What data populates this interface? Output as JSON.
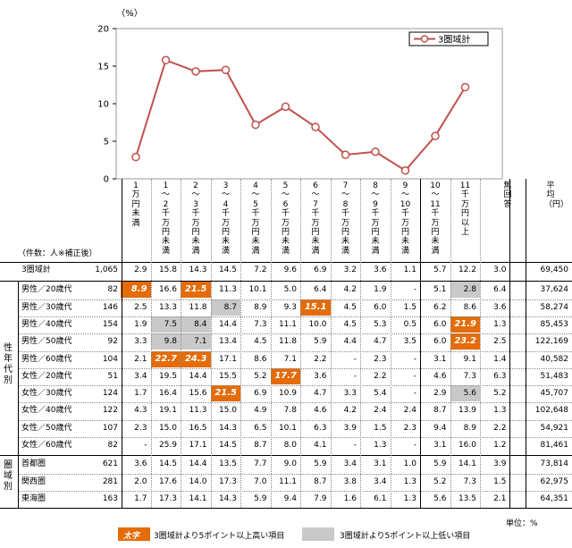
{
  "chart_data": {
    "type": "line",
    "y_unit": "（%）",
    "ylim": [
      0,
      20
    ],
    "yticks": [
      0,
      5,
      10,
      15,
      20
    ],
    "series": [
      {
        "name": "3圏域計",
        "values": [
          2.9,
          15.8,
          14.3,
          14.5,
          7.2,
          9.6,
          6.9,
          3.2,
          3.6,
          1.1,
          5.7,
          12.2
        ]
      }
    ],
    "color": "#c0504d",
    "legend_position": "top-right"
  },
  "columns": [
    "1万円未満",
    "1～2千万円未満",
    "2～3千万円未満",
    "3～4千万円未満",
    "4～5千万円未満",
    "5～6千万円未満",
    "6～7千万円未満",
    "7～8千万円未満",
    "8～9千万円未満",
    "9～10千万円未満",
    "10～11千万円未満",
    "11千万円以上",
    "無回答",
    "平均（円）"
  ],
  "sample_note": "（件数：人※補正後）",
  "total_row": {
    "label": "3圏域計",
    "n": "1,065",
    "values": [
      "2.9",
      "15.8",
      "14.3",
      "14.5",
      "7.2",
      "9.6",
      "6.9",
      "3.2",
      "3.6",
      "1.1",
      "5.7",
      "12.2",
      "3.0"
    ],
    "avg": "69,450"
  },
  "group_sexage": {
    "label": "性年代別",
    "rows": [
      {
        "label": "男性／20歳代",
        "n": "82",
        "values": [
          "8.9",
          "16.6",
          "21.5",
          "11.3",
          "10.1",
          "5.0",
          "6.4",
          "4.2",
          "1.9",
          "-",
          "5.1",
          "2.8",
          "6.4"
        ],
        "avg": "37,624"
      },
      {
        "label": "男性／30歳代",
        "n": "146",
        "values": [
          "2.5",
          "13.3",
          "11.8",
          "8.7",
          "8.9",
          "9.3",
          "15.1",
          "4.5",
          "6.0",
          "1.5",
          "6.2",
          "8.6",
          "3.6"
        ],
        "avg": "58,274"
      },
      {
        "label": "男性／40歳代",
        "n": "154",
        "values": [
          "1.9",
          "7.5",
          "8.4",
          "14.4",
          "7.3",
          "11.1",
          "10.0",
          "4.5",
          "5.3",
          "0.5",
          "6.0",
          "21.9",
          "1.3"
        ],
        "avg": "85,453"
      },
      {
        "label": "男性／50歳代",
        "n": "92",
        "values": [
          "3.3",
          "9.8",
          "7.1",
          "13.4",
          "4.5",
          "11.8",
          "5.9",
          "4.4",
          "4.7",
          "3.5",
          "6.0",
          "23.2",
          "2.5"
        ],
        "avg": "122,169"
      },
      {
        "label": "男性／60歳代",
        "n": "104",
        "values": [
          "2.1",
          "22.7",
          "24.3",
          "17.1",
          "8.6",
          "7.1",
          "2.2",
          "-",
          "2.3",
          "-",
          "3.1",
          "9.1",
          "1.4"
        ],
        "avg": "40,582"
      },
      {
        "label": "女性／20歳代",
        "n": "51",
        "values": [
          "3.4",
          "19.5",
          "14.4",
          "15.5",
          "5.2",
          "17.7",
          "3.6",
          "-",
          "2.2",
          "-",
          "4.6",
          "7.3",
          "6.3"
        ],
        "avg": "51,483"
      },
      {
        "label": "女性／30歳代",
        "n": "124",
        "values": [
          "1.7",
          "16.4",
          "15.6",
          "21.5",
          "6.9",
          "10.9",
          "4.7",
          "3.3",
          "5.4",
          "-",
          "2.9",
          "5.6",
          "5.2"
        ],
        "avg": "45,707"
      },
      {
        "label": "女性／40歳代",
        "n": "122",
        "values": [
          "4.3",
          "19.1",
          "11.3",
          "15.0",
          "4.9",
          "7.8",
          "4.6",
          "4.2",
          "2.4",
          "2.4",
          "8.7",
          "13.9",
          "1.3"
        ],
        "avg": "102,648"
      },
      {
        "label": "女性／50歳代",
        "n": "107",
        "values": [
          "2.3",
          "15.0",
          "16.5",
          "14.3",
          "6.5",
          "10.1",
          "6.3",
          "3.9",
          "1.5",
          "2.3",
          "9.4",
          "8.9",
          "2.2"
        ],
        "avg": "54,921"
      },
      {
        "label": "女性／60歳代",
        "n": "82",
        "values": [
          "-",
          "25.9",
          "17.1",
          "14.5",
          "8.7",
          "8.0",
          "4.1",
          "-",
          "1.3",
          "-",
          "3.1",
          "16.0",
          "1.2"
        ],
        "avg": "81,461"
      }
    ]
  },
  "group_region": {
    "label": "圏域別",
    "rows": [
      {
        "label": "首都圏",
        "n": "621",
        "values": [
          "3.6",
          "14.5",
          "14.4",
          "13.5",
          "7.7",
          "9.0",
          "5.9",
          "3.4",
          "3.1",
          "1.0",
          "5.9",
          "14.1",
          "3.9"
        ],
        "avg": "73,814"
      },
      {
        "label": "関西圏",
        "n": "281",
        "values": [
          "2.0",
          "17.6",
          "14.0",
          "17.3",
          "7.0",
          "11.1",
          "8.7",
          "3.8",
          "3.4",
          "1.3",
          "5.2",
          "7.3",
          "1.5"
        ],
        "avg": "62,975"
      },
      {
        "label": "東海圏",
        "n": "163",
        "values": [
          "1.7",
          "17.3",
          "14.1",
          "14.3",
          "5.9",
          "9.4",
          "7.9",
          "1.6",
          "6.1",
          "1.3",
          "5.6",
          "13.5",
          "2.1"
        ],
        "avg": "64,351"
      }
    ]
  },
  "highlights": {
    "high": [
      [
        0,
        0
      ],
      [
        0,
        2
      ],
      [
        1,
        6
      ],
      [
        2,
        11
      ],
      [
        3,
        11
      ],
      [
        4,
        1
      ],
      [
        4,
        2
      ],
      [
        5,
        5
      ],
      [
        6,
        3
      ]
    ],
    "low": [
      [
        0,
        11
      ],
      [
        1,
        3
      ],
      [
        2,
        1
      ],
      [
        2,
        2
      ],
      [
        3,
        1
      ],
      [
        3,
        2
      ],
      [
        6,
        11
      ]
    ]
  },
  "unit_note": "単位：%",
  "legend_bottom": {
    "high_swatch_text": "太字",
    "high_text": "3圏域計より5ポイント以上高い項目",
    "low_text": "3圏域計より5ポイント以上低い項目"
  }
}
